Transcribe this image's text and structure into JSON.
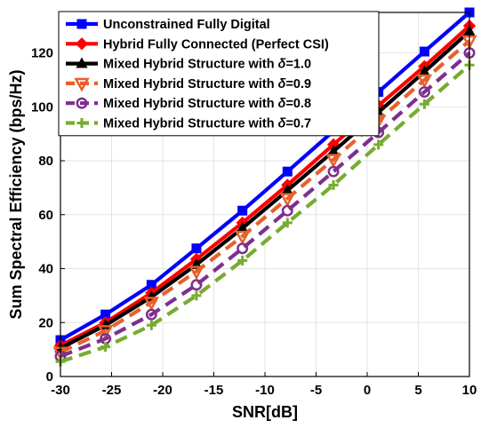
{
  "chart_data": {
    "type": "line",
    "title": "",
    "xlabel": "SNR[dB]",
    "ylabel": "Sum Spectral Efficiency (bps/Hz)",
    "xlim": [
      -30,
      10
    ],
    "ylim": [
      0,
      135
    ],
    "xticks": [
      -30,
      -25,
      -20,
      -15,
      -10,
      -5,
      0,
      5,
      10
    ],
    "yticks": [
      0,
      20,
      40,
      60,
      80,
      100,
      120
    ],
    "grid": true,
    "legend_position": "top-left",
    "x": [
      -30,
      -25.6,
      -21.1,
      -16.7,
      -12.2,
      -7.8,
      -3.3,
      1.1,
      5.6,
      10
    ],
    "series": [
      {
        "name": "Unconstrained Fully Digital",
        "color": "#0000ff",
        "marker": "square",
        "dash": "solid",
        "values": [
          13.5,
          23,
          34,
          47.5,
          61.5,
          76,
          91,
          105.5,
          120.5,
          135
        ]
      },
      {
        "name": "Hybrid Fully Connected (Perfect CSI)",
        "color": "#ff0000",
        "marker": "diamond",
        "dash": "solid",
        "values": [
          11.5,
          20,
          31,
          43.5,
          57,
          71,
          86,
          100.5,
          115,
          130
        ]
      },
      {
        "name": "Mixed Hybrid Structure with δ=1.0",
        "color": "#000000",
        "marker": "triangle-up",
        "dash": "solid",
        "values": [
          10.5,
          19,
          29.5,
          41.5,
          55,
          69,
          83.5,
          98,
          113,
          128
        ]
      },
      {
        "name": "Mixed Hybrid Structure with δ=0.9",
        "color": "#e8602a",
        "marker": "triangle-down",
        "dash": "dashed",
        "values": [
          9,
          17,
          27.5,
          39,
          52,
          66,
          80.5,
          95,
          110,
          124.5
        ]
      },
      {
        "name": "Mixed Hybrid Structure with δ=0.8",
        "color": "#7e2f8e",
        "marker": "circle",
        "dash": "dashed",
        "values": [
          7.5,
          14,
          23,
          34,
          47.5,
          61.5,
          76,
          90.5,
          105.5,
          120
        ]
      },
      {
        "name": "Mixed Hybrid Structure with δ=0.7",
        "color": "#77ac30",
        "marker": "plus",
        "dash": "dashed",
        "values": [
          5.5,
          11,
          19,
          30,
          43,
          57,
          71,
          86,
          101,
          115.5
        ]
      }
    ]
  }
}
